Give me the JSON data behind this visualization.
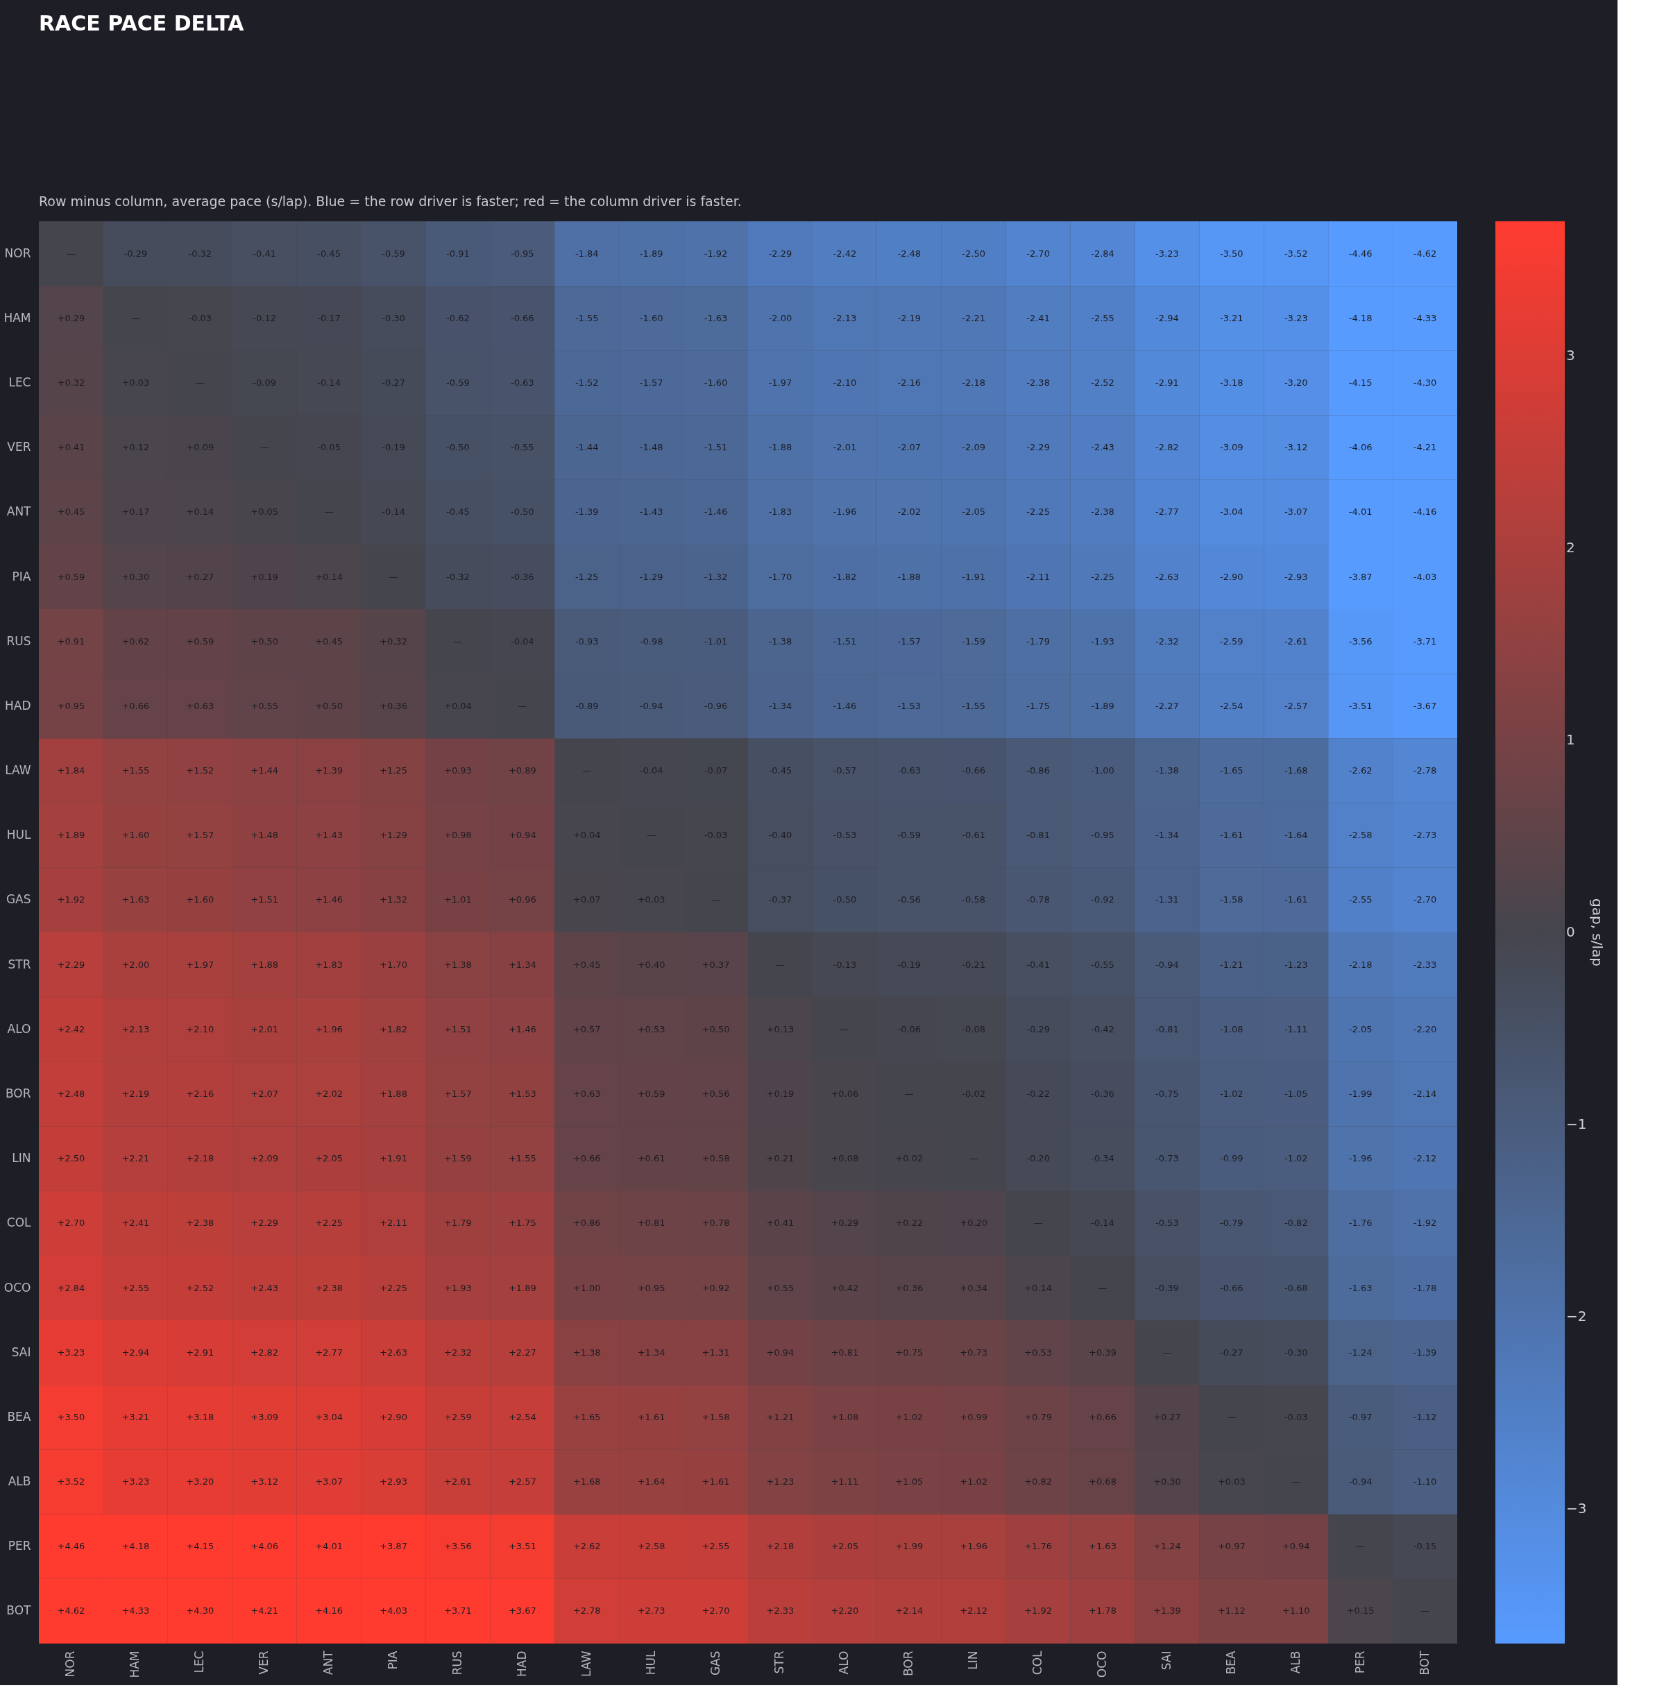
{
  "chart_data": {
    "type": "heatmap",
    "title": "RACE PACE DELTA",
    "subtitle": "Row minus column, average pace (s/lap). Blue = the row driver is faster; red = the column driver is faster.",
    "clabel": "gap, s/lap",
    "categories": [
      "NOR",
      "HAM",
      "LEC",
      "VER",
      "ANT",
      "PIA",
      "RUS",
      "HAD",
      "LAW",
      "HUL",
      "GAS",
      "STR",
      "ALO",
      "BOR",
      "LIN",
      "COL",
      "OCO",
      "SAI",
      "BEA",
      "ALB",
      "PER",
      "BOT"
    ],
    "y_categories": [
      "NOR",
      "HAM",
      "LEC",
      "VER",
      "ANT",
      "PIA",
      "RUS",
      "HAD",
      "LAW",
      "HUL",
      "GAS",
      "STR",
      "ALO",
      "BOR",
      "LIN",
      "COL",
      "OCO",
      "SAI",
      "BEA",
      "ALB",
      "PER",
      "BOT"
    ],
    "colors": [
      "#579bff",
      "#45454d",
      "#ff3b30"
    ],
    "clim": [
      -3.7,
      3.7
    ],
    "cticks": [
      {
        "value": -3,
        "label": "−3"
      },
      {
        "value": -2,
        "label": "−2"
      },
      {
        "value": -1,
        "label": "−1"
      },
      0,
      1,
      2,
      3
    ],
    "cells": [
      [
        null,
        -0.29,
        -0.32,
        -0.41,
        -0.45,
        -0.59,
        -0.91,
        -0.95,
        -1.84,
        -1.89,
        -1.92,
        -2.29,
        -2.42,
        -2.48,
        -2.5,
        -2.7,
        -2.84,
        -3.23,
        -3.5,
        -3.52,
        -4.46,
        -4.62
      ],
      [
        0.29,
        null,
        -0.03,
        -0.12,
        -0.17,
        -0.3,
        -0.62,
        -0.66,
        -1.55,
        -1.6,
        -1.63,
        -2.0,
        -2.13,
        -2.19,
        -2.21,
        -2.41,
        -2.55,
        -2.94,
        -3.21,
        -3.23,
        -4.18,
        -4.33
      ],
      [
        0.32,
        0.03,
        null,
        -0.09,
        -0.14,
        -0.27,
        -0.59,
        -0.63,
        -1.52,
        -1.57,
        -1.6,
        -1.97,
        -2.1,
        -2.16,
        -2.18,
        -2.38,
        -2.52,
        -2.91,
        -3.18,
        -3.2,
        -4.15,
        -4.3
      ],
      [
        0.41,
        0.12,
        0.09,
        null,
        -0.05,
        -0.19,
        -0.5,
        -0.55,
        -1.44,
        -1.48,
        -1.51,
        -1.88,
        -2.01,
        -2.07,
        -2.09,
        -2.29,
        -2.43,
        -2.82,
        -3.09,
        -3.12,
        -4.06,
        -4.21
      ],
      [
        0.45,
        0.17,
        0.14,
        0.05,
        null,
        -0.14,
        -0.45,
        -0.5,
        -1.39,
        -1.43,
        -1.46,
        -1.83,
        -1.96,
        -2.02,
        -2.05,
        -2.25,
        -2.38,
        -2.77,
        -3.04,
        -3.07,
        -4.01,
        -4.16
      ],
      [
        0.59,
        0.3,
        0.27,
        0.19,
        0.14,
        null,
        -0.32,
        -0.36,
        -1.25,
        -1.29,
        -1.32,
        -1.7,
        -1.82,
        -1.88,
        -1.91,
        -2.11,
        -2.25,
        -2.63,
        -2.9,
        -2.93,
        -3.87,
        -4.03
      ],
      [
        0.91,
        0.62,
        0.59,
        0.5,
        0.45,
        0.32,
        null,
        -0.04,
        -0.93,
        -0.98,
        -1.01,
        -1.38,
        -1.51,
        -1.57,
        -1.59,
        -1.79,
        -1.93,
        -2.32,
        -2.59,
        -2.61,
        -3.56,
        -3.71
      ],
      [
        0.95,
        0.66,
        0.63,
        0.55,
        0.5,
        0.36,
        0.04,
        null,
        -0.89,
        -0.94,
        -0.96,
        -1.34,
        -1.46,
        -1.53,
        -1.55,
        -1.75,
        -1.89,
        -2.27,
        -2.54,
        -2.57,
        -3.51,
        -3.67
      ],
      [
        1.84,
        1.55,
        1.52,
        1.44,
        1.39,
        1.25,
        0.93,
        0.89,
        null,
        -0.04,
        -0.07,
        -0.45,
        -0.57,
        -0.63,
        -0.66,
        -0.86,
        -1.0,
        -1.38,
        -1.65,
        -1.68,
        -2.62,
        -2.78
      ],
      [
        1.89,
        1.6,
        1.57,
        1.48,
        1.43,
        1.29,
        0.98,
        0.94,
        0.04,
        null,
        -0.03,
        -0.4,
        -0.53,
        -0.59,
        -0.61,
        -0.81,
        -0.95,
        -1.34,
        -1.61,
        -1.64,
        -2.58,
        -2.73
      ],
      [
        1.92,
        1.63,
        1.6,
        1.51,
        1.46,
        1.32,
        1.01,
        0.96,
        0.07,
        0.03,
        null,
        -0.37,
        -0.5,
        -0.56,
        -0.58,
        -0.78,
        -0.92,
        -1.31,
        -1.58,
        -1.61,
        -2.55,
        -2.7
      ],
      [
        2.29,
        2.0,
        1.97,
        1.88,
        1.83,
        1.7,
        1.38,
        1.34,
        0.45,
        0.4,
        0.37,
        null,
        -0.13,
        -0.19,
        -0.21,
        -0.41,
        -0.55,
        -0.94,
        -1.21,
        -1.23,
        -2.18,
        -2.33
      ],
      [
        2.42,
        2.13,
        2.1,
        2.01,
        1.96,
        1.82,
        1.51,
        1.46,
        0.57,
        0.53,
        0.5,
        0.13,
        null,
        -0.06,
        -0.08,
        -0.29,
        -0.42,
        -0.81,
        -1.08,
        -1.11,
        -2.05,
        -2.2
      ],
      [
        2.48,
        2.19,
        2.16,
        2.07,
        2.02,
        1.88,
        1.57,
        1.53,
        0.63,
        0.59,
        0.56,
        0.19,
        0.06,
        null,
        -0.02,
        -0.22,
        -0.36,
        -0.75,
        -1.02,
        -1.05,
        -1.99,
        -2.14
      ],
      [
        2.5,
        2.21,
        2.18,
        2.09,
        2.05,
        1.91,
        1.59,
        1.55,
        0.66,
        0.61,
        0.58,
        0.21,
        0.08,
        0.02,
        null,
        -0.2,
        -0.34,
        -0.73,
        -0.99,
        -1.02,
        -1.96,
        -2.12
      ],
      [
        2.7,
        2.41,
        2.38,
        2.29,
        2.25,
        2.11,
        1.79,
        1.75,
        0.86,
        0.81,
        0.78,
        0.41,
        0.29,
        0.22,
        0.2,
        null,
        -0.14,
        -0.53,
        -0.79,
        -0.82,
        -1.76,
        -1.92
      ],
      [
        2.84,
        2.55,
        2.52,
        2.43,
        2.38,
        2.25,
        1.93,
        1.89,
        1.0,
        0.95,
        0.92,
        0.55,
        0.42,
        0.36,
        0.34,
        0.14,
        null,
        -0.39,
        -0.66,
        -0.68,
        -1.63,
        -1.78
      ],
      [
        3.23,
        2.94,
        2.91,
        2.82,
        2.77,
        2.63,
        2.32,
        2.27,
        1.38,
        1.34,
        1.31,
        0.94,
        0.81,
        0.75,
        0.73,
        0.53,
        0.39,
        null,
        -0.27,
        -0.3,
        -1.24,
        -1.39
      ],
      [
        3.5,
        3.21,
        3.18,
        3.09,
        3.04,
        2.9,
        2.59,
        2.54,
        1.65,
        1.61,
        1.58,
        1.21,
        1.08,
        1.02,
        0.99,
        0.79,
        0.66,
        0.27,
        null,
        -0.03,
        -0.97,
        -1.12
      ],
      [
        3.52,
        3.23,
        3.2,
        3.12,
        3.07,
        2.93,
        2.61,
        2.57,
        1.68,
        1.64,
        1.61,
        1.23,
        1.11,
        1.05,
        1.02,
        0.82,
        0.68,
        0.3,
        0.03,
        null,
        -0.94,
        -1.1
      ],
      [
        4.46,
        4.18,
        4.15,
        4.06,
        4.01,
        3.87,
        3.56,
        3.51,
        2.62,
        2.58,
        2.55,
        2.18,
        2.05,
        1.99,
        1.96,
        1.76,
        1.63,
        1.24,
        0.97,
        0.94,
        null,
        -0.15
      ],
      [
        4.62,
        4.33,
        4.3,
        4.21,
        4.16,
        4.03,
        3.71,
        3.67,
        2.78,
        2.73,
        2.7,
        2.33,
        2.2,
        2.14,
        2.12,
        1.92,
        1.78,
        1.39,
        1.12,
        1.1,
        0.15,
        null
      ]
    ],
    "cell_labels": [
      [
        "—",
        "-0.29",
        "-0.32",
        "-0.41",
        "-0.45",
        "-0.59",
        "-0.91",
        "-0.95",
        "-1.84",
        "-1.89",
        "-1.92",
        "-2.29",
        "-2.42",
        "-2.48",
        "-2.50",
        "-2.70",
        "-2.84",
        "-3.23",
        "-3.50",
        "-3.52",
        "-4.46",
        "-4.62"
      ],
      [
        "+0.29",
        "—",
        "-0.03",
        "-0.12",
        "-0.17",
        "-0.30",
        "-0.62",
        "-0.66",
        "-1.55",
        "-1.60",
        "-1.63",
        "-2.00",
        "-2.13",
        "-2.19",
        "-2.21",
        "-2.41",
        "-2.55",
        "-2.94",
        "-3.21",
        "-3.23",
        "-4.18",
        "-4.33"
      ],
      [
        "+0.32",
        "+0.03",
        "—",
        "-0.09",
        "-0.14",
        "-0.27",
        "-0.59",
        "-0.63",
        "-1.52",
        "-1.57",
        "-1.60",
        "-1.97",
        "-2.10",
        "-2.16",
        "-2.18",
        "-2.38",
        "-2.52",
        "-2.91",
        "-3.18",
        "-3.20",
        "-4.15",
        "-4.30"
      ],
      [
        "+0.41",
        "+0.12",
        "+0.09",
        "—",
        "-0.05",
        "-0.19",
        "-0.50",
        "-0.55",
        "-1.44",
        "-1.48",
        "-1.51",
        "-1.88",
        "-2.01",
        "-2.07",
        "-2.09",
        "-2.29",
        "-2.43",
        "-2.82",
        "-3.09",
        "-3.12",
        "-4.06",
        "-4.21"
      ],
      [
        "+0.45",
        "+0.17",
        "+0.14",
        "+0.05",
        "—",
        "-0.14",
        "-0.45",
        "-0.50",
        "-1.39",
        "-1.43",
        "-1.46",
        "-1.83",
        "-1.96",
        "-2.02",
        "-2.05",
        "-2.25",
        "-2.38",
        "-2.77",
        "-3.04",
        "-3.07",
        "-4.01",
        "-4.16"
      ],
      [
        "+0.59",
        "+0.30",
        "+0.27",
        "+0.19",
        "+0.14",
        "—",
        "-0.32",
        "-0.36",
        "-1.25",
        "-1.29",
        "-1.32",
        "-1.70",
        "-1.82",
        "-1.88",
        "-1.91",
        "-2.11",
        "-2.25",
        "-2.63",
        "-2.90",
        "-2.93",
        "-3.87",
        "-4.03"
      ],
      [
        "+0.91",
        "+0.62",
        "+0.59",
        "+0.50",
        "+0.45",
        "+0.32",
        "—",
        "-0.04",
        "-0.93",
        "-0.98",
        "-1.01",
        "-1.38",
        "-1.51",
        "-1.57",
        "-1.59",
        "-1.79",
        "-1.93",
        "-2.32",
        "-2.59",
        "-2.61",
        "-3.56",
        "-3.71"
      ],
      [
        "+0.95",
        "+0.66",
        "+0.63",
        "+0.55",
        "+0.50",
        "+0.36",
        "+0.04",
        "—",
        "-0.89",
        "-0.94",
        "-0.96",
        "-1.34",
        "-1.46",
        "-1.53",
        "-1.55",
        "-1.75",
        "-1.89",
        "-2.27",
        "-2.54",
        "-2.57",
        "-3.51",
        "-3.67"
      ],
      [
        "+1.84",
        "+1.55",
        "+1.52",
        "+1.44",
        "+1.39",
        "+1.25",
        "+0.93",
        "+0.89",
        "—",
        "-0.04",
        "-0.07",
        "-0.45",
        "-0.57",
        "-0.63",
        "-0.66",
        "-0.86",
        "-1.00",
        "-1.38",
        "-1.65",
        "-1.68",
        "-2.62",
        "-2.78"
      ],
      [
        "+1.89",
        "+1.60",
        "+1.57",
        "+1.48",
        "+1.43",
        "+1.29",
        "+0.98",
        "+0.94",
        "+0.04",
        "—",
        "-0.03",
        "-0.40",
        "-0.53",
        "-0.59",
        "-0.61",
        "-0.81",
        "-0.95",
        "-1.34",
        "-1.61",
        "-1.64",
        "-2.58",
        "-2.73"
      ],
      [
        "+1.92",
        "+1.63",
        "+1.60",
        "+1.51",
        "+1.46",
        "+1.32",
        "+1.01",
        "+0.96",
        "+0.07",
        "+0.03",
        "—",
        "-0.37",
        "-0.50",
        "-0.56",
        "-0.58",
        "-0.78",
        "-0.92",
        "-1.31",
        "-1.58",
        "-1.61",
        "-2.55",
        "-2.70"
      ],
      [
        "+2.29",
        "+2.00",
        "+1.97",
        "+1.88",
        "+1.83",
        "+1.70",
        "+1.38",
        "+1.34",
        "+0.45",
        "+0.40",
        "+0.37",
        "—",
        "-0.13",
        "-0.19",
        "-0.21",
        "-0.41",
        "-0.55",
        "-0.94",
        "-1.21",
        "-1.23",
        "-2.18",
        "-2.33"
      ],
      [
        "+2.42",
        "+2.13",
        "+2.10",
        "+2.01",
        "+1.96",
        "+1.82",
        "+1.51",
        "+1.46",
        "+0.57",
        "+0.53",
        "+0.50",
        "+0.13",
        "—",
        "-0.06",
        "-0.08",
        "-0.29",
        "-0.42",
        "-0.81",
        "-1.08",
        "-1.11",
        "-2.05",
        "-2.20"
      ],
      [
        "+2.48",
        "+2.19",
        "+2.16",
        "+2.07",
        "+2.02",
        "+1.88",
        "+1.57",
        "+1.53",
        "+0.63",
        "+0.59",
        "+0.56",
        "+0.19",
        "+0.06",
        "—",
        "-0.02",
        "-0.22",
        "-0.36",
        "-0.75",
        "-1.02",
        "-1.05",
        "-1.99",
        "-2.14"
      ],
      [
        "+2.50",
        "+2.21",
        "+2.18",
        "+2.09",
        "+2.05",
        "+1.91",
        "+1.59",
        "+1.55",
        "+0.66",
        "+0.61",
        "+0.58",
        "+0.21",
        "+0.08",
        "+0.02",
        "—",
        "-0.20",
        "-0.34",
        "-0.73",
        "-0.99",
        "-1.02",
        "-1.96",
        "-2.12"
      ],
      [
        "+2.70",
        "+2.41",
        "+2.38",
        "+2.29",
        "+2.25",
        "+2.11",
        "+1.79",
        "+1.75",
        "+0.86",
        "+0.81",
        "+0.78",
        "+0.41",
        "+0.29",
        "+0.22",
        "+0.20",
        "—",
        "-0.14",
        "-0.53",
        "-0.79",
        "-0.82",
        "-1.76",
        "-1.92"
      ],
      [
        "+2.84",
        "+2.55",
        "+2.52",
        "+2.43",
        "+2.38",
        "+2.25",
        "+1.93",
        "+1.89",
        "+1.00",
        "+0.95",
        "+0.92",
        "+0.55",
        "+0.42",
        "+0.36",
        "+0.34",
        "+0.14",
        "—",
        "-0.39",
        "-0.66",
        "-0.68",
        "-1.63",
        "-1.78"
      ],
      [
        "+3.23",
        "+2.94",
        "+2.91",
        "+2.82",
        "+2.77",
        "+2.63",
        "+2.32",
        "+2.27",
        "+1.38",
        "+1.34",
        "+1.31",
        "+0.94",
        "+0.81",
        "+0.75",
        "+0.73",
        "+0.53",
        "+0.39",
        "—",
        "-0.27",
        "-0.30",
        "-1.24",
        "-1.39"
      ],
      [
        "+3.50",
        "+3.21",
        "+3.18",
        "+3.09",
        "+3.04",
        "+2.90",
        "+2.59",
        "+2.54",
        "+1.65",
        "+1.61",
        "+1.58",
        "+1.21",
        "+1.08",
        "+1.02",
        "+0.99",
        "+0.79",
        "+0.66",
        "+0.27",
        "—",
        "-0.03",
        "-0.97",
        "-1.12"
      ],
      [
        "+3.52",
        "+3.23",
        "+3.20",
        "+3.12",
        "+3.07",
        "+2.93",
        "+2.61",
        "+2.57",
        "+1.68",
        "+1.64",
        "+1.61",
        "+1.23",
        "+1.11",
        "+1.05",
        "+1.02",
        "+0.82",
        "+0.68",
        "+0.30",
        "+0.03",
        "—",
        "-0.94",
        "-1.10"
      ],
      [
        "+4.46",
        "+4.18",
        "+4.15",
        "+4.06",
        "+4.01",
        "+3.87",
        "+3.56",
        "+3.51",
        "+2.62",
        "+2.58",
        "+2.55",
        "+2.18",
        "+2.05",
        "+1.99",
        "+1.96",
        "+1.76",
        "+1.63",
        "+1.24",
        "+0.97",
        "+0.94",
        "—",
        "-0.15"
      ],
      [
        "+4.62",
        "+4.33",
        "+4.30",
        "+4.21",
        "+4.16",
        "+4.03",
        "+3.71",
        "+3.67",
        "+2.78",
        "+2.73",
        "+2.70",
        "+2.33",
        "+2.20",
        "+2.14",
        "+2.12",
        "+1.92",
        "+1.78",
        "+1.39",
        "+1.12",
        "+1.10",
        "+0.15",
        "—"
      ]
    ]
  }
}
